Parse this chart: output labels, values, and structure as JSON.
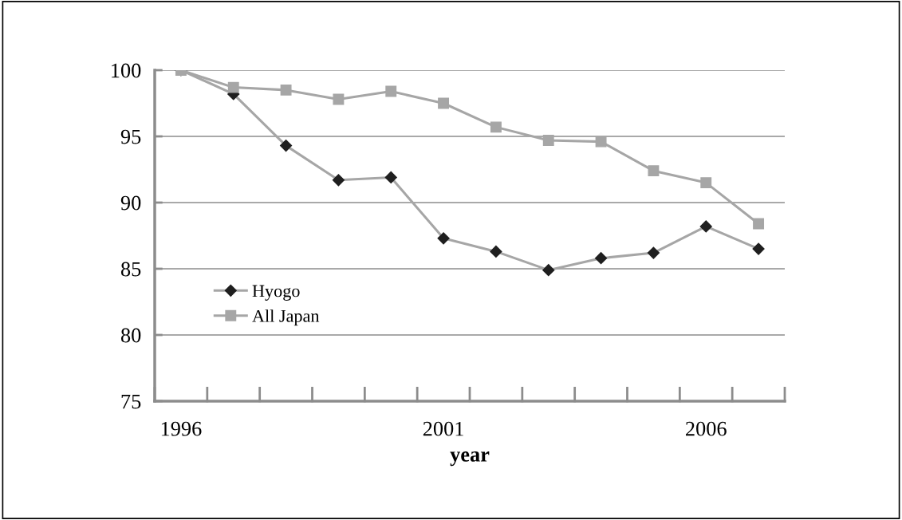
{
  "chart_data": {
    "type": "line",
    "xlabel": "year",
    "categories": [
      "1996",
      null,
      null,
      null,
      null,
      "2001",
      null,
      null,
      null,
      null,
      "2006",
      null
    ],
    "series": [
      {
        "name": "Hyogo",
        "color": "#1f1f1f",
        "marker": "diamond",
        "values": [
          100,
          98.2,
          94.3,
          91.7,
          91.9,
          87.3,
          86.3,
          84.9,
          85.8,
          86.2,
          88.2,
          86.5
        ]
      },
      {
        "name": "All Japan",
        "color": "#a6a6a6",
        "marker": "square",
        "values": [
          100,
          98.7,
          98.5,
          97.8,
          98.4,
          97.5,
          95.7,
          94.7,
          94.6,
          92.4,
          91.5,
          88.4
        ]
      }
    ],
    "ylim": [
      75,
      100
    ],
    "yticks": [
      75,
      80,
      85,
      90,
      95,
      100
    ],
    "grid": "y",
    "legend": "bottom left"
  }
}
